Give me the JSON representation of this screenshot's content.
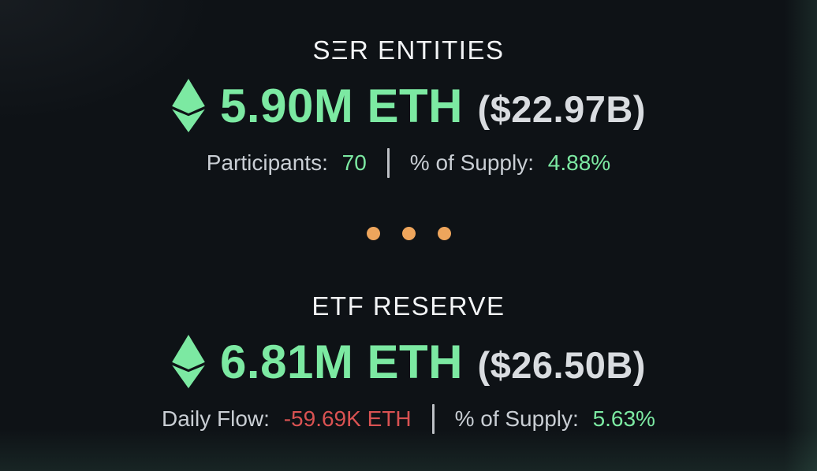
{
  "theme": {
    "background": "#0e1216",
    "green": "#7ce9a2",
    "red": "#d95252",
    "orange": "#eea55c",
    "title_color": "#f2f4f6",
    "label_color": "#c9ced4",
    "paren_color": "#d9dce0",
    "divider_color": "#d0d4d8"
  },
  "sections": [
    {
      "title": "SΞR ENTITIES",
      "icon": "ethereum-icon",
      "amount": "5.90M ETH",
      "usd": "($22.97B)",
      "stats": [
        {
          "label": "Participants:",
          "value": "70",
          "tone": "green"
        },
        {
          "label": "% of Supply:",
          "value": "4.88%",
          "tone": "green"
        }
      ]
    },
    {
      "title": "ETF RESERVE",
      "icon": "ethereum-icon",
      "amount": "6.81M ETH",
      "usd": "($26.50B)",
      "stats": [
        {
          "label": "Daily Flow:",
          "value": "-59.69K ETH",
          "tone": "red"
        },
        {
          "label": "% of Supply:",
          "value": "5.63%",
          "tone": "green"
        }
      ]
    }
  ],
  "separator": {
    "dot_count": 3
  }
}
